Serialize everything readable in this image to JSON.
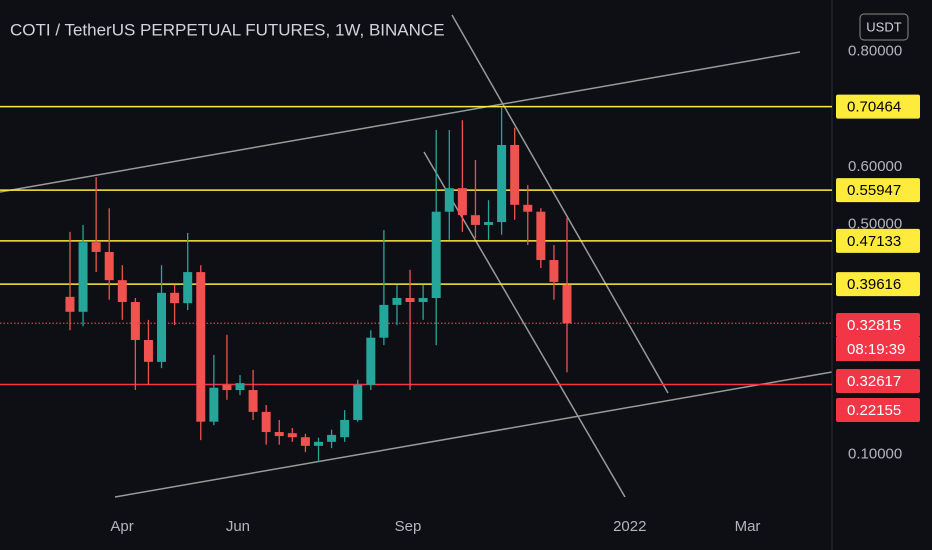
{
  "chart_data": {
    "type": "candlestick",
    "title": "COTI / TetherUS PERPETUAL FUTURES, 1W, BINANCE",
    "currency": "USDT",
    "open": [
      0.374,
      0.348,
      0.469,
      0.452,
      0.403,
      0.365,
      0.299,
      0.261,
      0.381,
      0.363,
      0.417,
      0.157,
      0.221,
      0.212,
      0.212,
      0.174,
      0.139,
      0.137,
      0.13,
      0.115,
      0.122,
      0.13,
      0.16,
      0.221,
      0.303,
      0.36,
      0.372,
      0.365,
      0.372,
      0.522,
      0.563,
      0.516,
      0.499,
      0.504,
      0.638,
      0.534,
      0.522,
      0.438,
      0.395
    ],
    "high": [
      0.487,
      0.499,
      0.582,
      0.528,
      0.429,
      0.372,
      0.334,
      0.429,
      0.395,
      0.485,
      0.429,
      0.273,
      0.308,
      0.238,
      0.247,
      0.186,
      0.16,
      0.146,
      0.136,
      0.129,
      0.143,
      0.177,
      0.23,
      0.316,
      0.49,
      0.395,
      0.421,
      0.395,
      0.664,
      0.664,
      0.681,
      0.612,
      0.542,
      0.704,
      0.668,
      0.568,
      0.528,
      0.464,
      0.511
    ],
    "low": [
      0.316,
      0.323,
      0.417,
      0.369,
      0.334,
      0.212,
      0.221,
      0.25,
      0.325,
      0.351,
      0.125,
      0.151,
      0.195,
      0.203,
      0.16,
      0.117,
      0.117,
      0.122,
      0.104,
      0.087,
      0.111,
      0.122,
      0.157,
      0.212,
      0.29,
      0.325,
      0.212,
      0.334,
      0.29,
      0.473,
      0.487,
      0.476,
      0.473,
      0.482,
      0.508,
      0.464,
      0.424,
      0.369,
      0.243
    ],
    "close": [
      0.348,
      0.469,
      0.452,
      0.403,
      0.365,
      0.299,
      0.261,
      0.381,
      0.363,
      0.417,
      0.157,
      0.216,
      0.212,
      0.224,
      0.174,
      0.139,
      0.132,
      0.13,
      0.115,
      0.122,
      0.134,
      0.16,
      0.221,
      0.303,
      0.36,
      0.372,
      0.365,
      0.372,
      0.522,
      0.563,
      0.516,
      0.499,
      0.504,
      0.638,
      0.534,
      0.522,
      0.438,
      0.4,
      0.328
    ],
    "up_color": "#26a69a",
    "down_color": "#ef5350",
    "xlim": [
      -5.35,
      58.26
    ],
    "xticks": [
      {
        "value": 3.98,
        "label": "Apr"
      },
      {
        "value": 12.84,
        "label": "Jun"
      },
      {
        "value": 25.84,
        "label": "Sep"
      },
      {
        "value": 42.8,
        "label": "2022"
      },
      {
        "value": 51.8,
        "label": "Mar"
      }
    ],
    "ylim": [
      0,
      0.89
    ],
    "yticks": [
      {
        "value": 0.8,
        "label": "0.80000"
      },
      {
        "value": 0.6,
        "label": "0.60000"
      },
      {
        "value": 0.5,
        "label": "0.50000"
      },
      {
        "value": 0.1,
        "label": "0.10000"
      }
    ],
    "grid": false,
    "levels": [
      {
        "value": 0.70464,
        "color": "#ffeb3b"
      },
      {
        "value": 0.55947,
        "color": "#ffeb3b"
      },
      {
        "value": 0.47133,
        "color": "#ffeb3b"
      },
      {
        "value": 0.39616,
        "color": "#ffeb3b"
      }
    ],
    "support_line": {
      "value": 0.22155,
      "color": "#f23645"
    },
    "last_price": {
      "value": 0.32815,
      "countdown": "08:19:39",
      "color": "#f23645"
    },
    "marker_price": 0.32617
  }
}
